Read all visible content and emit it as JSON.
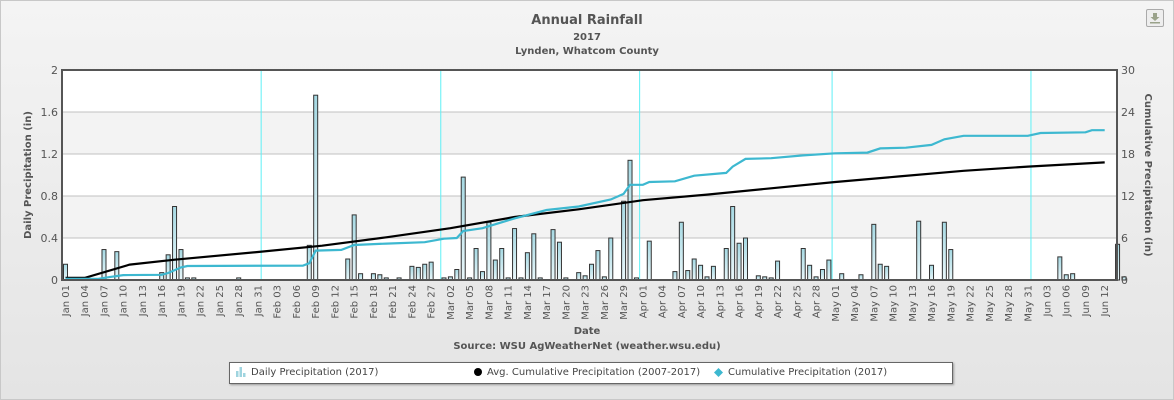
{
  "header": {
    "title": "Annual Rainfall",
    "subtitle": "2017",
    "location": "Lynden, Whatcom County"
  },
  "export_button": {
    "icon": "download-icon"
  },
  "footer": {
    "xlabel": "Date",
    "source": "Source:  WSU AgWeatherNet (weather.wsu.edu)"
  },
  "legend": [
    {
      "label": "Daily Precipitation (2017)",
      "icon": "bar-chart-icon",
      "color": "#bfe3ea"
    },
    {
      "label": "Avg. Cumulative Precipitation (2007-2017)",
      "icon": "circle-icon",
      "color": "#000000"
    },
    {
      "label": "Cumulative Precipitation (2017)",
      "icon": "diamond-icon",
      "color": "#3db8d0"
    }
  ],
  "colors": {
    "bar_fill_top": "#a6d9e3",
    "bar_fill_bottom": "#eaf7fa",
    "bar_stroke": "#333333",
    "avg_line": "#000000",
    "cum_line": "#3db8d0",
    "month_line": "#5ef0f6",
    "grid": "#c0c0c0",
    "band": "#f3f3f3"
  },
  "chart_data": {
    "type": "bar+line",
    "title": "Annual Rainfall",
    "subtitle": "2017 — Lynden, Whatcom County",
    "xlabel": "Date",
    "ylabel": "Daily Precipitation (in)",
    "y2label": "Cumulative Precipitation (in)",
    "ylim": [
      0,
      2
    ],
    "y2lim": [
      0,
      30
    ],
    "yticks": [
      "0",
      "0.4",
      "0.8",
      "1.2",
      "1.6",
      "2"
    ],
    "y2ticks": [
      "0",
      "6",
      "12",
      "18",
      "24",
      "30"
    ],
    "grid": true,
    "legend_position": "bottom",
    "start_date": "Jan 01",
    "x_tick_labels": [
      "Jan 01",
      "Jan 04",
      "Jan 07",
      "Jan 10",
      "Jan 13",
      "Jan 16",
      "Jan 19",
      "Jan 22",
      "Jan 25",
      "Jan 28",
      "Jan 31",
      "Feb 03",
      "Feb 06",
      "Feb 09",
      "Feb 12",
      "Feb 15",
      "Feb 18",
      "Feb 21",
      "Feb 24",
      "Feb 27",
      "Mar 02",
      "Mar 05",
      "Mar 08",
      "Mar 11",
      "Mar 14",
      "Mar 17",
      "Mar 20",
      "Mar 23",
      "Mar 26",
      "Mar 29",
      "Apr 01",
      "Apr 04",
      "Apr 07",
      "Apr 10",
      "Apr 13",
      "Apr 16",
      "Apr 19",
      "Apr 22",
      "Apr 25",
      "Apr 28",
      "May 01",
      "May 04",
      "May 07",
      "May 10",
      "May 13",
      "May 16",
      "May 19",
      "May 22",
      "May 25",
      "May 28",
      "May 31",
      "Jun 03",
      "Jun 06",
      "Jun 09",
      "Jun 12"
    ],
    "month_boundaries": [
      "Feb 01",
      "Mar 01",
      "Apr 01",
      "May 01",
      "Jun 01"
    ],
    "series": [
      {
        "name": "Daily Precipitation (2017)",
        "type": "bar",
        "axis": "left",
        "values": [
          0.15,
          0,
          0,
          0,
          0,
          0,
          0.29,
          0,
          0.27,
          0,
          0,
          0,
          0,
          0,
          0,
          0.07,
          0.24,
          0.7,
          0.29,
          0.02,
          0.02,
          0,
          0,
          0,
          0,
          0,
          0,
          0.02,
          0,
          0,
          0,
          0,
          0,
          0,
          0,
          0,
          0,
          0,
          0.33,
          1.76,
          0,
          0,
          0,
          0,
          0.2,
          0.62,
          0.06,
          0,
          0.06,
          0.05,
          0.02,
          0,
          0.02,
          0,
          0.13,
          0.12,
          0.15,
          0.17,
          0,
          0.02,
          0.03,
          0.1,
          0.98,
          0.02,
          0.3,
          0.08,
          0.55,
          0.19,
          0.3,
          0.02,
          0.49,
          0.02,
          0.26,
          0.44,
          0.02,
          0,
          0.48,
          0.36,
          0.02,
          0,
          0.07,
          0.04,
          0.15,
          0.28,
          0.03,
          0.4,
          0,
          0.75,
          1.14,
          0.02,
          0,
          0.37,
          0,
          0,
          0,
          0.08,
          0.55,
          0.09,
          0.2,
          0.14,
          0.03,
          0.13,
          0,
          0.3,
          0.7,
          0.35,
          0.4,
          0,
          0.04,
          0.03,
          0.02,
          0.18,
          0,
          0,
          0,
          0.3,
          0.14,
          0.03,
          0.1,
          0.19,
          0,
          0.06,
          0,
          0,
          0.05,
          0,
          0.53,
          0.15,
          0.13,
          0,
          0,
          0,
          0,
          0.56,
          0,
          0.14,
          0,
          0.55,
          0.29,
          0,
          0,
          0,
          0,
          0,
          0,
          0,
          0,
          0,
          0,
          0,
          0,
          0,
          0,
          0,
          0,
          0.22,
          0.05,
          0.06,
          0,
          0,
          0,
          0,
          0,
          0,
          0.34,
          0.03,
          0,
          0,
          0,
          0,
          0
        ]
      },
      {
        "name": "Avg. Cumulative Precipitation (2007-2017)",
        "type": "line",
        "axis": "right",
        "points": [
          [
            0,
            0.3
          ],
          [
            3,
            0.3
          ],
          [
            10,
            2.2
          ],
          [
            17,
            2.9
          ],
          [
            30,
            4.0
          ],
          [
            40,
            4.9
          ],
          [
            50,
            6.1
          ],
          [
            60,
            7.4
          ],
          [
            70,
            9.0
          ],
          [
            80,
            10.1
          ],
          [
            90,
            11.4
          ],
          [
            100,
            12.2
          ],
          [
            110,
            13.1
          ],
          [
            120,
            14.0
          ],
          [
            130,
            14.8
          ],
          [
            140,
            15.6
          ],
          [
            150,
            16.2
          ],
          [
            162,
            16.8
          ]
        ]
      },
      {
        "name": "Cumulative Precipitation (2017)",
        "type": "line",
        "axis": "right",
        "points": [
          [
            0,
            0.15
          ],
          [
            5,
            0.15
          ],
          [
            7,
            0.45
          ],
          [
            9,
            0.7
          ],
          [
            15,
            0.75
          ],
          [
            16,
            1.0
          ],
          [
            18,
            1.8
          ],
          [
            19,
            2.0
          ],
          [
            37,
            2.05
          ],
          [
            38,
            2.4
          ],
          [
            39,
            4.2
          ],
          [
            43,
            4.3
          ],
          [
            45,
            5.0
          ],
          [
            50,
            5.2
          ],
          [
            56,
            5.4
          ],
          [
            59,
            5.9
          ],
          [
            61,
            6.0
          ],
          [
            62,
            7.0
          ],
          [
            65,
            7.4
          ],
          [
            70,
            8.8
          ],
          [
            75,
            10.0
          ],
          [
            80,
            10.5
          ],
          [
            85,
            11.5
          ],
          [
            87,
            12.3
          ],
          [
            88,
            13.6
          ],
          [
            90,
            13.6
          ],
          [
            91,
            14.0
          ],
          [
            95,
            14.1
          ],
          [
            98,
            14.9
          ],
          [
            103,
            15.3
          ],
          [
            104,
            16.2
          ],
          [
            106,
            17.3
          ],
          [
            110,
            17.4
          ],
          [
            115,
            17.8
          ],
          [
            120,
            18.1
          ],
          [
            125,
            18.2
          ],
          [
            127,
            18.8
          ],
          [
            131,
            18.9
          ],
          [
            135,
            19.3
          ],
          [
            137,
            20.1
          ],
          [
            140,
            20.6
          ],
          [
            150,
            20.6
          ],
          [
            152,
            21.0
          ],
          [
            159,
            21.1
          ],
          [
            160,
            21.4
          ],
          [
            162,
            21.4
          ]
        ]
      }
    ]
  }
}
